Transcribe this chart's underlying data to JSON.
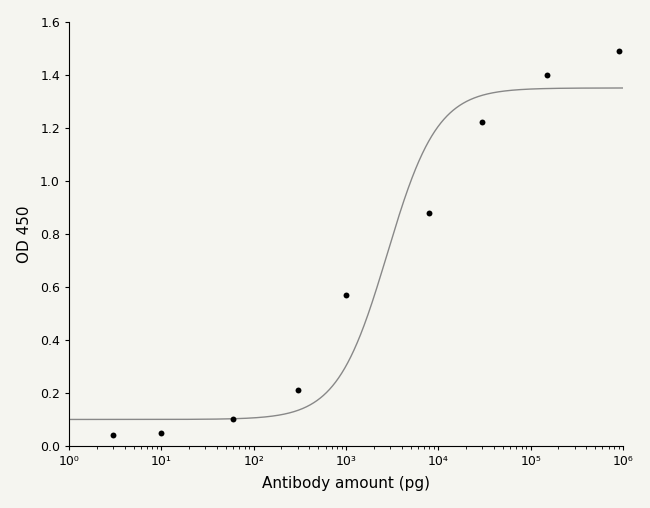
{
  "points_x": [
    3,
    10,
    60,
    300,
    1000,
    8000,
    30000,
    150000,
    900000
  ],
  "points_y": [
    0.04,
    0.05,
    0.1,
    0.21,
    0.57,
    0.88,
    1.22,
    1.4,
    1.49
  ],
  "xlabel": "Antibody amount (pg)",
  "ylabel": "OD 450",
  "xlim_log": [
    1,
    6
  ],
  "ylim": [
    0,
    1.6
  ],
  "yticks": [
    0.0,
    0.2,
    0.4,
    0.6,
    0.8,
    1.0,
    1.2,
    1.4,
    1.6
  ],
  "xtick_positions": [
    1,
    10,
    100,
    1000,
    10000,
    100000,
    1000000
  ],
  "xtick_labels": [
    "10⁰",
    "10¹",
    "10²",
    "10³",
    "10⁴",
    "10⁵",
    "10⁶"
  ],
  "line_color": "#888888",
  "point_color": "#000000",
  "background_color": "#f5f5f0",
  "point_size": 18,
  "line_width": 1.0,
  "curve_A": 0.1,
  "curve_B": 1.6,
  "curve_C": 2800,
  "curve_D": 1.35
}
